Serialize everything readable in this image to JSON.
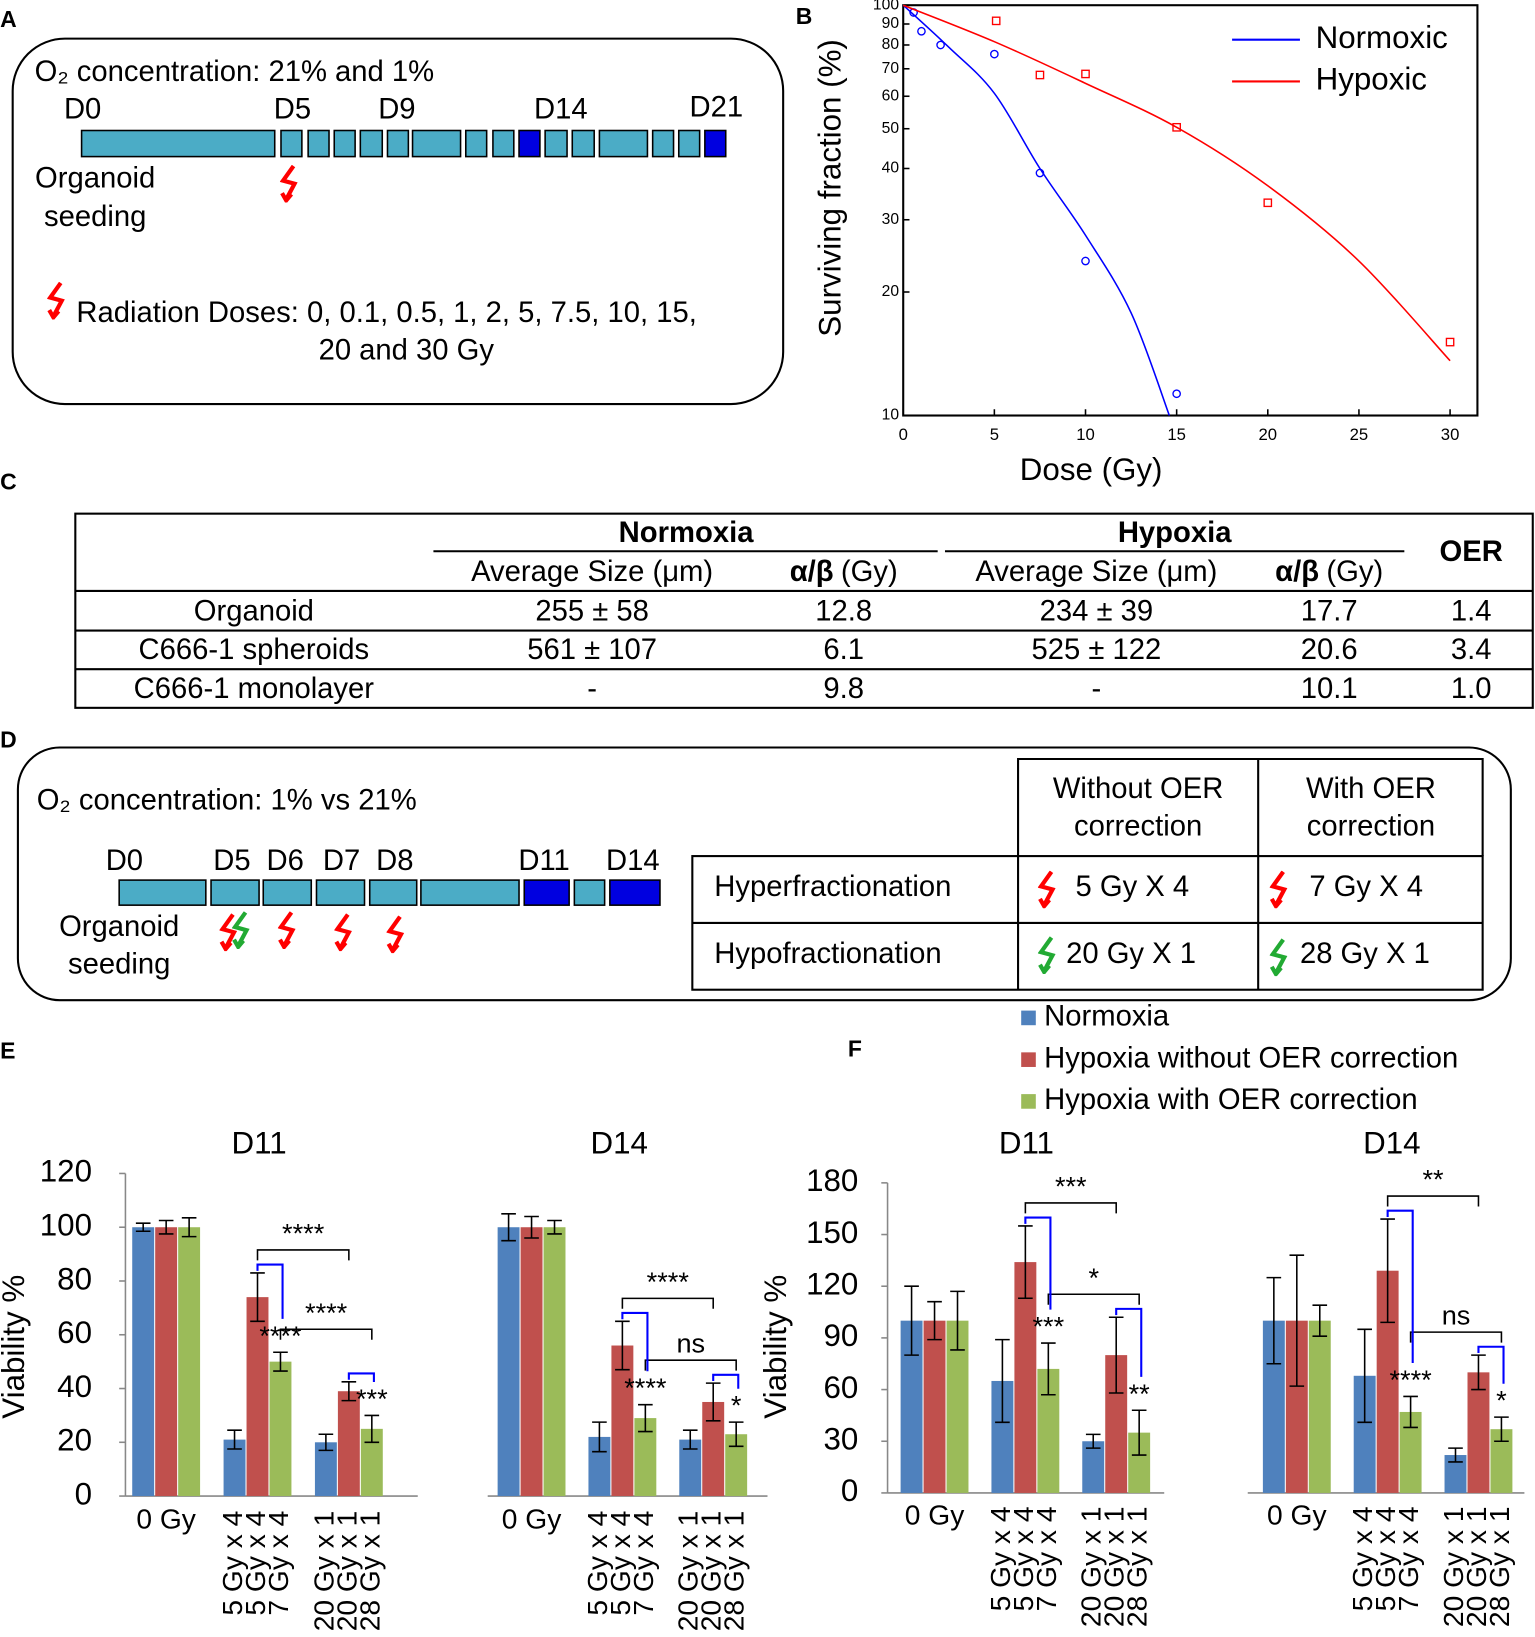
{
  "panel_labels": [
    "A",
    "B",
    "C",
    "D",
    "E",
    "F"
  ],
  "panel_a": {
    "o2": "O₂ concentration: 21% and 1%",
    "days": [
      "D0",
      "D5",
      "D9",
      "D14",
      "D21"
    ],
    "seeding": [
      "Organoid",
      "seeding"
    ],
    "radiation": [
      "Radiation Doses: 0, 0.1, 0.5, 1, 2, 5, 7.5, 10, 15,",
      "20 and 30 Gy"
    ]
  },
  "chart_data": [
    {
      "type": "scatter",
      "xlabel": "Dose (Gy)",
      "ylabel": "Surviving fraction (%)",
      "log_scale": "y",
      "xlim": [
        0,
        31.5
      ],
      "ylim": [
        10,
        100
      ],
      "xticks": [
        0,
        5,
        10,
        15,
        20,
        25,
        30
      ],
      "yticks": [
        10,
        20,
        30,
        40,
        50,
        60,
        70,
        80,
        90,
        100
      ],
      "legend_position": "upper right",
      "series": [
        {
          "name": "Normoxic",
          "color": "#0000ff",
          "marker": "circle",
          "x": [
            0.57,
            1,
            2.05,
            5,
            7.5,
            10,
            15
          ],
          "values": [
            96,
            86.4,
            80,
            76,
            39,
            23.8,
            11.3
          ],
          "fit_x": [
            0,
            2.5,
            5,
            7.5,
            10,
            12.5,
            14.6
          ],
          "fit_values": [
            100,
            79,
            61,
            40,
            27.5,
            17.8,
            10
          ]
        },
        {
          "name": "Hypoxic",
          "color": "#ff0000",
          "marker": "square",
          "x": [
            5.1,
            7.5,
            10,
            15,
            20,
            30
          ],
          "values": [
            91.6,
            67.6,
            68,
            50.4,
            33,
            15.1
          ],
          "fit_x": [
            0,
            5,
            10,
            15,
            20,
            25,
            30
          ],
          "fit_values": [
            100,
            81.5,
            64.5,
            50.4,
            36.3,
            23.8,
            13.6
          ]
        }
      ]
    },
    {
      "type": "bar",
      "title": "D11",
      "ylabel": "Viability %",
      "ylim": [
        0,
        120
      ],
      "yticks": [
        0,
        20,
        40,
        60,
        80,
        100,
        120
      ],
      "categories": [
        [
          "0 Gy"
        ],
        [
          "5 Gy x 4",
          "5 Gy x 4",
          "7 Gy x 4"
        ],
        [
          "20 Gy x 1",
          "20 Gy x 1",
          "28 Gy x 1"
        ]
      ],
      "accent_color": "#0000ff",
      "series": [
        {
          "color": "#4f81bd",
          "values": [
            100,
            21,
            20
          ],
          "errors": [
            1.5,
            3.5,
            3
          ]
        },
        {
          "color": "#c0504d",
          "values": [
            100,
            74,
            39
          ],
          "errors": [
            2.5,
            9,
            3.5
          ]
        },
        {
          "color": "#9bbb59",
          "values": [
            100,
            50,
            25
          ],
          "errors": [
            3.5,
            3.5,
            5
          ]
        }
      ],
      "brackets": [
        {
          "from": [
            1,
            1
          ],
          "to": [
            2,
            1
          ],
          "label": "****",
          "color": "#000000"
        },
        {
          "from": [
            1,
            2
          ],
          "to": [
            2,
            2
          ],
          "label": "****",
          "color": "#000000"
        },
        {
          "from": [
            1,
            1
          ],
          "to": [
            1,
            2
          ],
          "label": "****",
          "color": "#0000ff"
        },
        {
          "from": [
            2,
            1
          ],
          "to": [
            2,
            2
          ],
          "label": "***",
          "color": "#0000ff"
        }
      ]
    },
    {
      "type": "bar",
      "title": "D14",
      "ylim": [
        0,
        120
      ],
      "categories": [
        [
          "0 Gy"
        ],
        [
          "5 Gy x 4",
          "5 Gy x 4",
          "7 Gy x 4"
        ],
        [
          "20 Gy x 1",
          "20 Gy x 1",
          "28 Gy x 1"
        ]
      ],
      "accent_color": "#0000ff",
      "series": [
        {
          "color": "#4f81bd",
          "values": [
            100,
            22,
            21
          ],
          "errors": [
            5,
            5.5,
            3.5
          ]
        },
        {
          "color": "#c0504d",
          "values": [
            100,
            56,
            35
          ],
          "errors": [
            4,
            9,
            7
          ]
        },
        {
          "color": "#9bbb59",
          "values": [
            100,
            29,
            23
          ],
          "errors": [
            2.5,
            5,
            4.5
          ]
        }
      ],
      "brackets": [
        {
          "from": [
            1,
            1
          ],
          "to": [
            2,
            1
          ],
          "label": "****",
          "color": "#000000"
        },
        {
          "from": [
            1,
            2
          ],
          "to": [
            2,
            2
          ],
          "label": "ns",
          "color": "#000000"
        },
        {
          "from": [
            1,
            1
          ],
          "to": [
            1,
            2
          ],
          "label": "****",
          "color": "#0000ff"
        },
        {
          "from": [
            2,
            1
          ],
          "to": [
            2,
            2
          ],
          "label": "*",
          "color": "#0000ff"
        }
      ]
    },
    {
      "type": "bar",
      "title": "D11",
      "ylabel": "Viability %",
      "ylim": [
        0,
        180
      ],
      "yticks": [
        0,
        30,
        60,
        90,
        120,
        150,
        180
      ],
      "categories": [
        [
          "0 Gy"
        ],
        [
          "5 Gy x 4",
          "5 Gy x 4",
          "7 Gy x 4"
        ],
        [
          "20 Gy x 1",
          "20 Gy x 1",
          "28 Gy x 1"
        ]
      ],
      "accent_color": "#0000ff",
      "series": [
        {
          "color": "#4f81bd",
          "values": [
            100,
            65,
            30
          ],
          "errors": [
            20,
            24,
            4
          ]
        },
        {
          "color": "#c0504d",
          "values": [
            100,
            134,
            80
          ],
          "errors": [
            11,
            21,
            22
          ]
        },
        {
          "color": "#9bbb59",
          "values": [
            100,
            72,
            35
          ],
          "errors": [
            17,
            15,
            13
          ]
        }
      ],
      "brackets": [
        {
          "from": [
            1,
            1
          ],
          "to": [
            2,
            1
          ],
          "label": "***",
          "color": "#000000"
        },
        {
          "from": [
            1,
            2
          ],
          "to": [
            2,
            2
          ],
          "label": "*",
          "color": "#000000"
        },
        {
          "from": [
            1,
            1
          ],
          "to": [
            1,
            2
          ],
          "label": "***",
          "color": "#0000ff"
        },
        {
          "from": [
            2,
            1
          ],
          "to": [
            2,
            2
          ],
          "label": "**",
          "color": "#0000ff"
        }
      ]
    },
    {
      "type": "bar",
      "title": "D14",
      "ylim": [
        0,
        180
      ],
      "categories": [
        [
          "0 Gy"
        ],
        [
          "5 Gy x 4",
          "5 Gy x 4",
          "7 Gy x 4"
        ],
        [
          "20 Gy x 1",
          "20 Gy x 1",
          "28 Gy x 1"
        ]
      ],
      "accent_color": "#0000ff",
      "series": [
        {
          "color": "#4f81bd",
          "values": [
            100,
            68,
            22
          ],
          "errors": [
            25,
            27,
            4
          ]
        },
        {
          "color": "#c0504d",
          "values": [
            100,
            129,
            70
          ],
          "errors": [
            38,
            30,
            10
          ]
        },
        {
          "color": "#9bbb59",
          "values": [
            100,
            47,
            37
          ],
          "errors": [
            9,
            9,
            7
          ]
        }
      ],
      "brackets": [
        {
          "from": [
            1,
            1
          ],
          "to": [
            2,
            1
          ],
          "label": "**",
          "color": "#000000"
        },
        {
          "from": [
            1,
            2
          ],
          "to": [
            2,
            2
          ],
          "label": "ns",
          "color": "#000000"
        },
        {
          "from": [
            1,
            1
          ],
          "to": [
            1,
            2
          ],
          "label": "****",
          "color": "#0000ff"
        },
        {
          "from": [
            2,
            1
          ],
          "to": [
            2,
            2
          ],
          "label": "*",
          "color": "#0000ff"
        }
      ]
    }
  ],
  "table_c": {
    "groups": [
      "Normoxia",
      "Hypoxia",
      "OER"
    ],
    "subheaders": [
      "Average Size (μm)",
      "α/β",
      "(Gy)",
      "Average Size (μm)",
      "α/β",
      "(Gy)"
    ],
    "rows": [
      [
        "Organoid",
        "255 ± 58",
        "12.8",
        "234 ± 39",
        "17.7",
        "1.4"
      ],
      [
        "C666-1 spheroids",
        "561 ± 107",
        "6.1",
        "525 ± 122",
        "20.6",
        "3.4"
      ],
      [
        "C666-1 monolayer",
        "-",
        "9.8",
        "-",
        "10.1",
        "1.0"
      ]
    ]
  },
  "panel_d": {
    "o2": "O₂ concentration: 1% vs 21%",
    "days": [
      "D0",
      "D5",
      "D6",
      "D7",
      "D8",
      "D11",
      "D14"
    ],
    "seeding": [
      "Organoid",
      "seeding"
    ],
    "table": {
      "headers": [
        [
          "Without OER",
          "correction"
        ],
        [
          "With OER",
          "correction"
        ]
      ],
      "rows": [
        [
          "Hyperfractionation",
          "5 Gy X 4",
          "7 Gy X 4"
        ],
        [
          "Hypofractionation",
          "20 Gy X 1",
          "28 Gy X 1"
        ]
      ]
    }
  },
  "legend": {
    "items": [
      {
        "name": "Normoxia",
        "color": "#4f81bd",
        "text_color": "#000000"
      },
      {
        "name": "Hypoxia without OER correction",
        "color": "#c0504d",
        "text_color": "#000000"
      },
      {
        "name": "Hypoxia with OER correction",
        "color": "#9bbb59",
        "text_color": "#0000ff"
      }
    ]
  }
}
